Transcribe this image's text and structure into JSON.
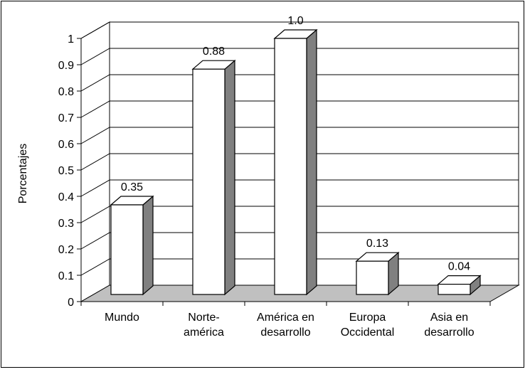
{
  "chart_data": {
    "type": "bar",
    "style": "3d-bar",
    "title": "",
    "xlabel": "",
    "ylabel": "Porcentajes",
    "ylim": [
      0,
      1
    ],
    "yticks": [
      "0",
      "0.1",
      "0.2",
      "0.3",
      "0.4",
      "0.5",
      "0.6",
      "0.7",
      "0.8",
      "0.9",
      "1"
    ],
    "grid": true,
    "legend": "none",
    "categories": [
      [
        "Mundo"
      ],
      [
        "Norte-",
        "américa"
      ],
      [
        "América en",
        "desarrollo"
      ],
      [
        "Europa",
        "Occidental"
      ],
      [
        "Asia en",
        "desarrollo"
      ]
    ],
    "values": [
      0.35,
      0.88,
      1.0,
      0.13,
      0.04
    ],
    "data_labels": [
      "0.35",
      "0.88",
      "1.0",
      "0.13",
      "0.04"
    ],
    "colors": {
      "bar_front": "#ffffff",
      "bar_top": "#ffffff",
      "bar_side": "#808080",
      "floor": "#c0c0c0",
      "grid": "#000000",
      "outline": "#000000"
    }
  }
}
